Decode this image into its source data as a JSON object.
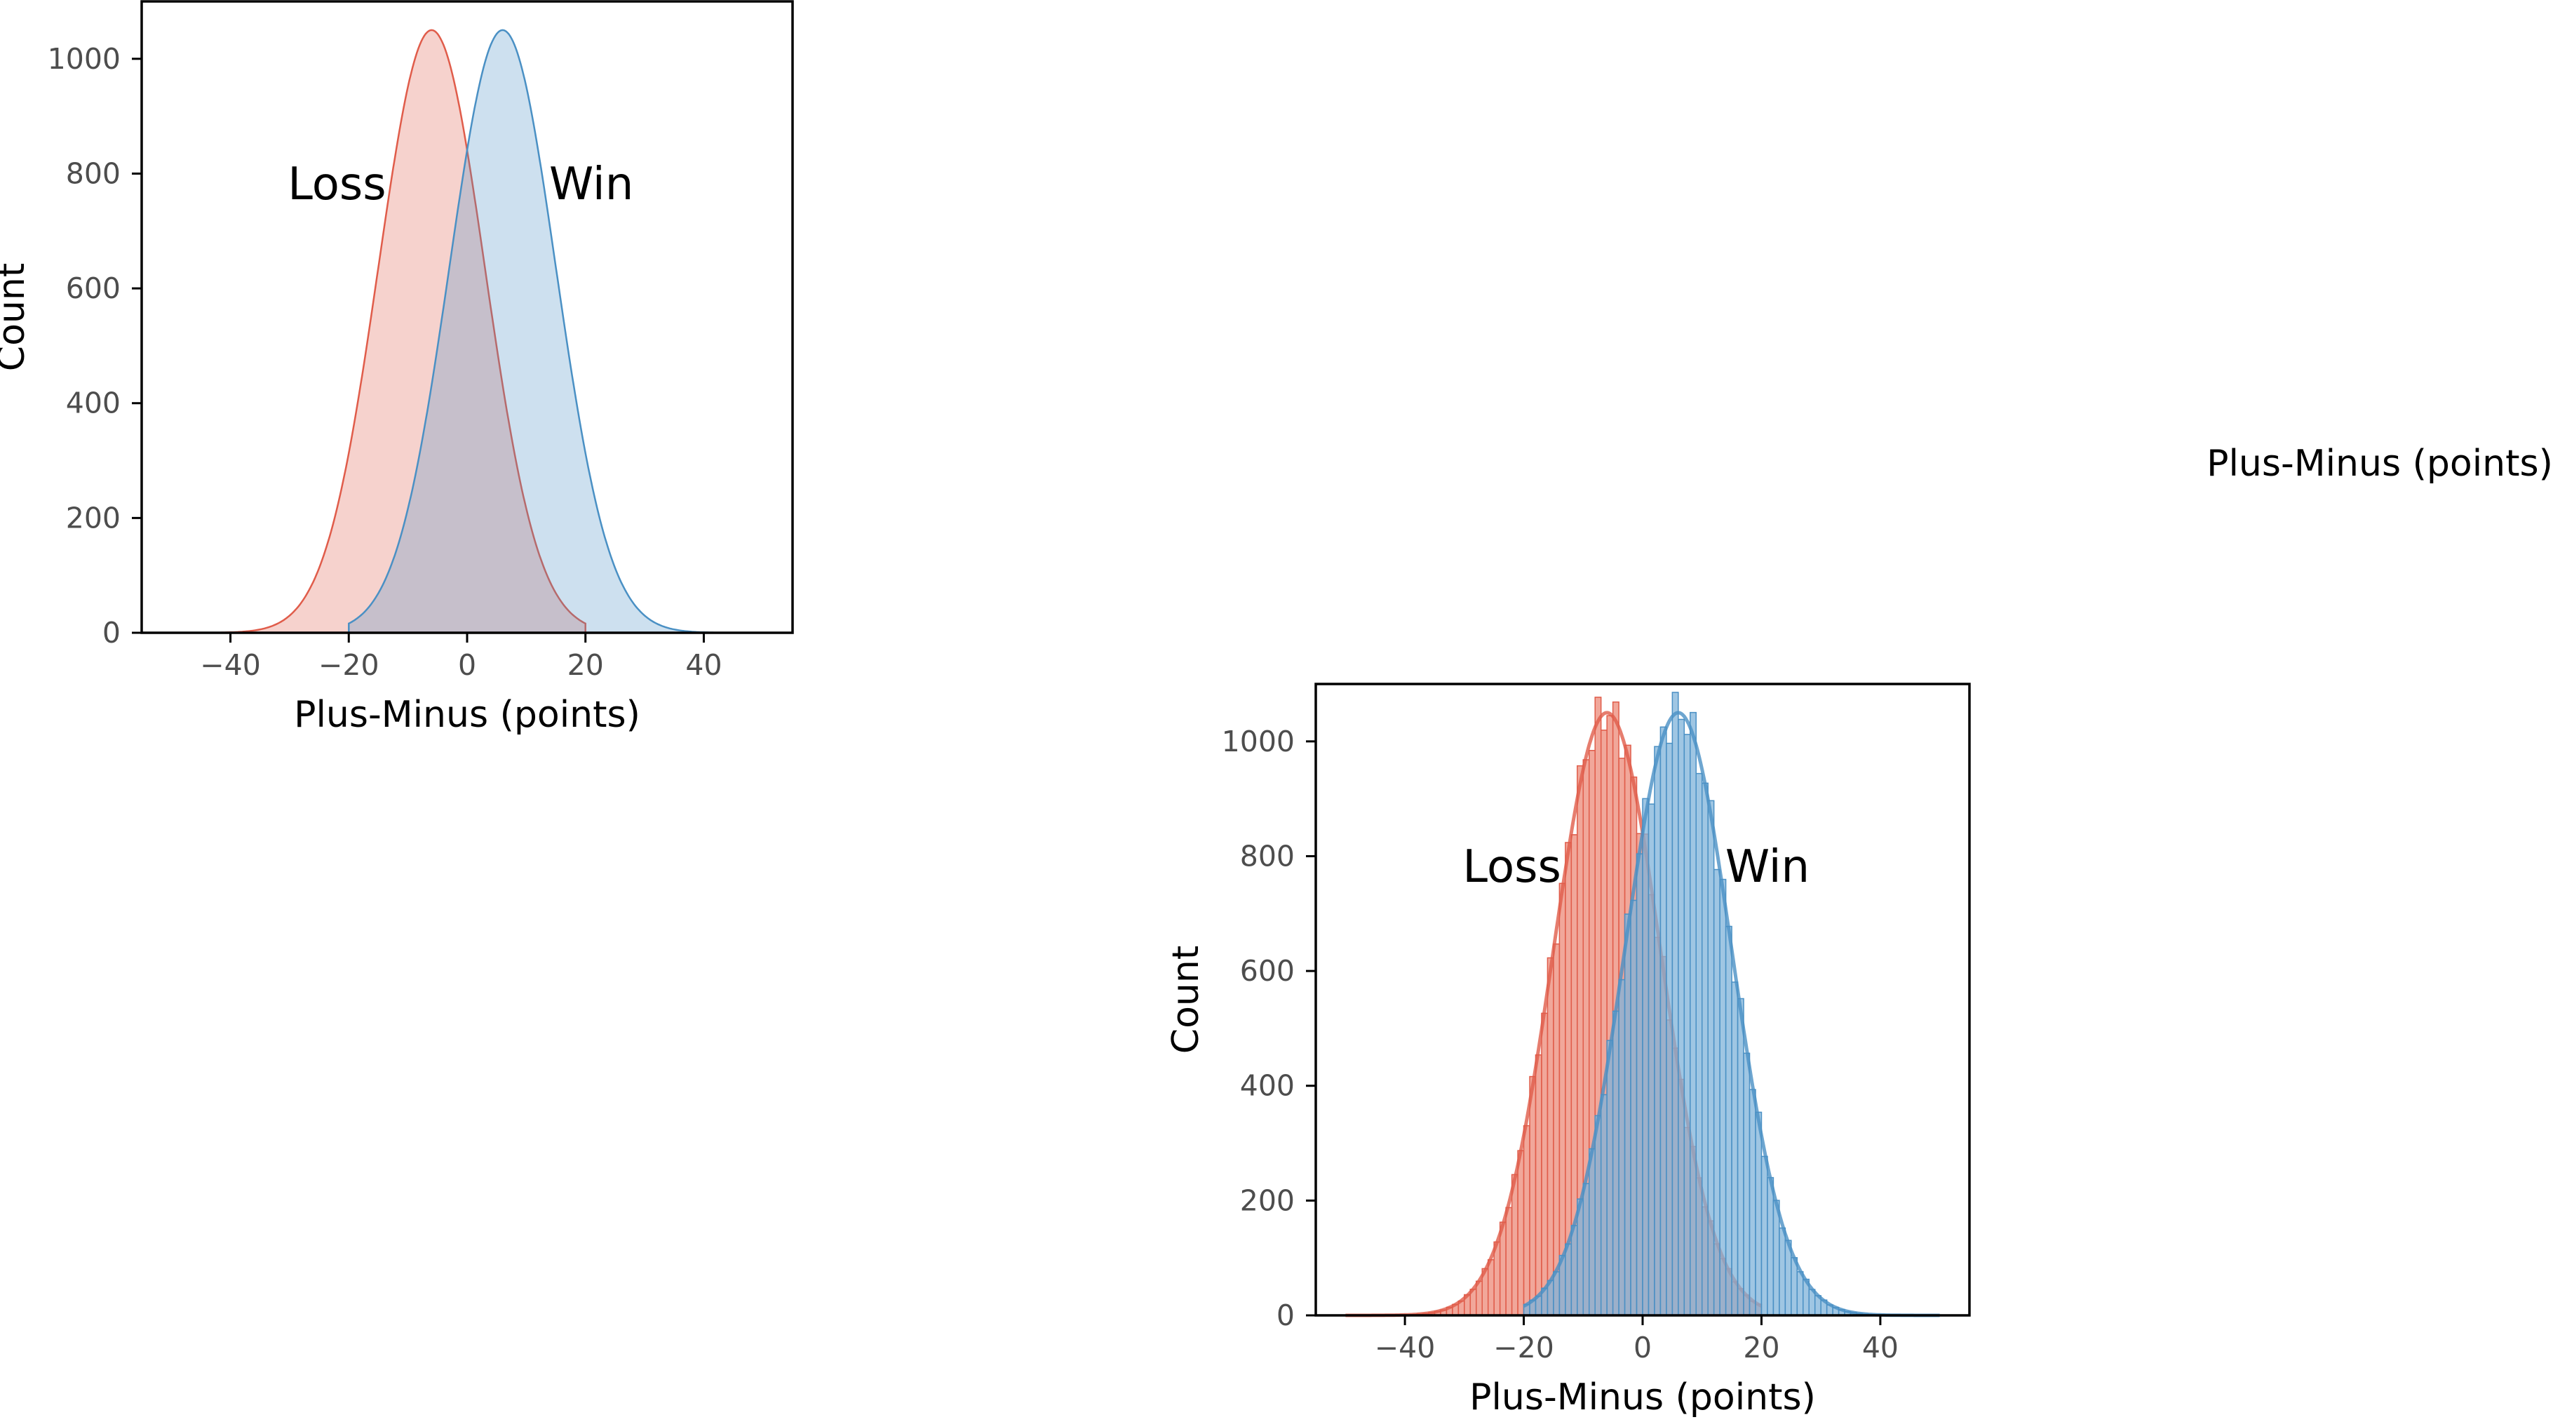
{
  "colors": {
    "loss": "#e05c4a",
    "loss_fill_light": "#f5c8c0",
    "win": "#4a90c4",
    "win_fill_light": "#c9e0ef",
    "hist_loss": "#ec8a78",
    "hist_win": "#7fb3da"
  },
  "stray_label": "Plus-Minus (points)",
  "chart_data": [
    {
      "type": "area",
      "subtype": "kde",
      "xlabel": "Plus-Minus (points)",
      "ylabel": "Count",
      "xlim": [
        -55,
        55
      ],
      "ylim": [
        0,
        1100
      ],
      "xticks": [
        -40,
        -20,
        0,
        20,
        40
      ],
      "yticks": [
        0,
        200,
        400,
        600,
        800,
        1000
      ],
      "xtick_labels": [
        "−40",
        "−20",
        "0",
        "20",
        "40"
      ],
      "ytick_labels": [
        "0",
        "200",
        "400",
        "600",
        "800",
        "1000"
      ],
      "annotations": [
        {
          "text": "Loss",
          "x": -22,
          "y": 780
        },
        {
          "text": "Win",
          "x": 21,
          "y": 780
        }
      ],
      "series": [
        {
          "name": "Loss",
          "color_key": "loss",
          "mean": -6,
          "sd": 9,
          "peak": 1050,
          "range": [
            -50,
            20
          ]
        },
        {
          "name": "Win",
          "color_key": "win",
          "mean": 6,
          "sd": 9,
          "peak": 1050,
          "range": [
            -20,
            50
          ]
        }
      ]
    },
    {
      "type": "bar",
      "subtype": "histogram_with_kde",
      "xlabel": "Plus-Minus (points)",
      "ylabel": "Count",
      "xlim": [
        -55,
        55
      ],
      "ylim": [
        0,
        1100
      ],
      "xticks": [
        -40,
        -20,
        0,
        20,
        40
      ],
      "yticks": [
        0,
        200,
        400,
        600,
        800,
        1000
      ],
      "xtick_labels": [
        "−40",
        "−20",
        "0",
        "20",
        "40"
      ],
      "ytick_labels": [
        "0",
        "200",
        "400",
        "600",
        "800",
        "1000"
      ],
      "annotations": [
        {
          "text": "Loss",
          "x": -22,
          "y": 780
        },
        {
          "text": "Win",
          "x": 21,
          "y": 780
        }
      ],
      "bin_width": 1,
      "series": [
        {
          "name": "Loss",
          "color_key": "loss",
          "mean": -6,
          "sd": 9,
          "peak": 1050,
          "range": [
            -50,
            20
          ]
        },
        {
          "name": "Win",
          "color_key": "win",
          "mean": 6,
          "sd": 9,
          "peak": 1050,
          "range": [
            -20,
            50
          ]
        }
      ]
    }
  ]
}
